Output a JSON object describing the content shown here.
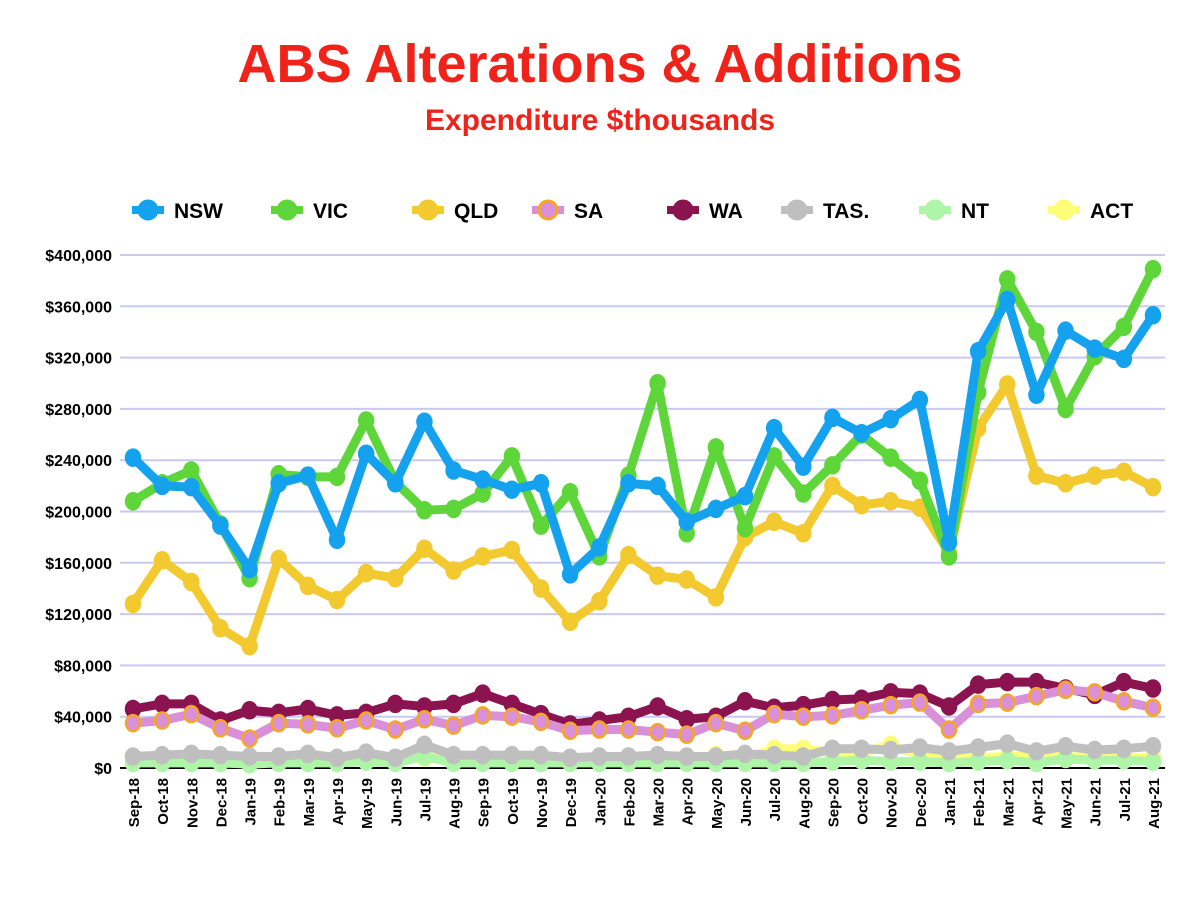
{
  "chart_data": {
    "type": "line",
    "title": "ABS Alterations & Additions",
    "subtitle": "Expenditure $thousands",
    "xlabel": "",
    "ylabel": "",
    "ylim": [
      0,
      400000
    ],
    "grid": true,
    "legend_position": "top",
    "yticks": [
      0,
      40000,
      80000,
      120000,
      160000,
      200000,
      240000,
      280000,
      320000,
      360000,
      400000
    ],
    "ytick_labels": [
      "$0",
      "$40,000",
      "$80,000",
      "$120,000",
      "$160,000",
      "$200,000",
      "$240,000",
      "$280,000",
      "$320,000",
      "$360,000",
      "$400,000"
    ],
    "categories": [
      "Sep-18",
      "Oct-18",
      "Nov-18",
      "Dec-18",
      "Jan-19",
      "Feb-19",
      "Mar-19",
      "Apr-19",
      "May-19",
      "Jun-19",
      "Jul-19",
      "Aug-19",
      "Sep-19",
      "Oct-19",
      "Nov-19",
      "Dec-19",
      "Jan-20",
      "Feb-20",
      "Mar-20",
      "Apr-20",
      "May-20",
      "Jun-20",
      "Jul-20",
      "Aug-20",
      "Sep-20",
      "Oct-20",
      "Nov-20",
      "Dec-20",
      "Jan-21",
      "Feb-21",
      "Mar-21",
      "Apr-21",
      "May-21",
      "Jun-21",
      "Jul-21",
      "Aug-21"
    ],
    "series": [
      {
        "name": "NSW",
        "color": "#14a2ef",
        "marker": "#14a2ef",
        "values": [
          242000,
          220000,
          219000,
          189000,
          155000,
          222000,
          228000,
          178000,
          245000,
          222000,
          270000,
          232000,
          225000,
          217000,
          222000,
          151000,
          172000,
          222000,
          220000,
          192000,
          202000,
          212000,
          265000,
          235000,
          273000,
          261000,
          272000,
          287000,
          176000,
          325000,
          365000,
          291000,
          341000,
          327000,
          319000,
          353000
        ]
      },
      {
        "name": "VIC",
        "color": "#5ed63a",
        "marker": "#5ed63a",
        "values": [
          208000,
          222000,
          232000,
          190000,
          148000,
          229000,
          227000,
          227000,
          271000,
          223000,
          201000,
          202000,
          214000,
          243000,
          189000,
          215000,
          165000,
          228000,
          300000,
          183000,
          250000,
          187000,
          243000,
          214000,
          236000,
          260000,
          242000,
          224000,
          165000,
          293000,
          381000,
          340000,
          280000,
          321000,
          344000,
          389000
        ]
      },
      {
        "name": "QLD",
        "color": "#f2c92e",
        "marker": "#f2c92e",
        "values": [
          128000,
          162000,
          145000,
          109000,
          95000,
          163000,
          142000,
          131000,
          152000,
          148000,
          171000,
          154000,
          165000,
          170000,
          140000,
          114000,
          130000,
          166000,
          150000,
          147000,
          133000,
          180000,
          192000,
          183000,
          220000,
          205000,
          208000,
          203000,
          168000,
          265000,
          299000,
          228000,
          222000,
          228000,
          231000,
          219000
        ]
      },
      {
        "name": "SA",
        "color": "#da90d8",
        "marker": "#f5a623",
        "values": [
          35000,
          37000,
          42000,
          31000,
          23000,
          35000,
          34000,
          31000,
          37000,
          30000,
          38000,
          33000,
          41000,
          40000,
          36000,
          29000,
          30000,
          30000,
          28000,
          26000,
          35000,
          29000,
          42000,
          40000,
          41000,
          45000,
          49000,
          51000,
          30000,
          50000,
          51000,
          56000,
          61000,
          59000,
          52000,
          47000
        ]
      },
      {
        "name": "WA",
        "color": "#8b1450",
        "marker": "#8b1450",
        "values": [
          46000,
          50000,
          50000,
          37000,
          45000,
          43000,
          46000,
          41000,
          43000,
          50000,
          48000,
          50000,
          58000,
          50000,
          42000,
          34000,
          37000,
          40000,
          48000,
          38000,
          40000,
          52000,
          47000,
          49000,
          53000,
          54000,
          59000,
          58000,
          48000,
          65000,
          67000,
          67000,
          62000,
          57000,
          67000,
          62000
        ]
      },
      {
        "name": "TAS.",
        "color": "#bfbfbf",
        "marker": "#bfbfbf",
        "values": [
          9000,
          10000,
          11000,
          10000,
          9000,
          9000,
          11000,
          8000,
          12000,
          8000,
          18000,
          10000,
          10000,
          10000,
          10000,
          8000,
          9000,
          9000,
          10000,
          9000,
          9000,
          11000,
          10000,
          9000,
          15000,
          15000,
          14000,
          16000,
          13000,
          16000,
          19000,
          13000,
          17000,
          14000,
          15000,
          17000
        ]
      },
      {
        "name": "NT",
        "color": "#aef5a8",
        "marker": "#aef5a8",
        "values": [
          4000,
          4000,
          4000,
          4000,
          3000,
          4000,
          4000,
          4000,
          5000,
          4000,
          9000,
          4000,
          4000,
          4000,
          4000,
          4000,
          4000,
          4000,
          4000,
          4000,
          4000,
          4000,
          4000,
          4000,
          5000,
          6000,
          5000,
          5000,
          4000,
          5000,
          6000,
          4000,
          7000,
          6000,
          6000,
          5000
        ]
      },
      {
        "name": "ACT",
        "color": "#fdfd78",
        "marker": "#fdfd78",
        "values": [
          8000,
          8000,
          8000,
          8000,
          6000,
          6000,
          8000,
          6000,
          8000,
          7000,
          8000,
          8000,
          7000,
          8000,
          7000,
          6000,
          6000,
          6000,
          7000,
          6000,
          10000,
          7000,
          15000,
          15000,
          12000,
          12000,
          18000,
          10000,
          7000,
          8000,
          9000,
          9000,
          9000,
          8000,
          8000,
          8000
        ]
      }
    ]
  }
}
